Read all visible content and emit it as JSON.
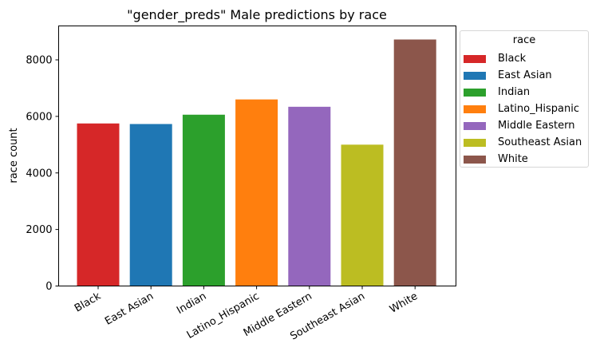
{
  "chart_data": {
    "type": "bar",
    "title": "\"gender_preds\" Male predictions by race",
    "xlabel": "",
    "ylabel": "race count",
    "ylim": [
      0,
      9200
    ],
    "yticks": [
      0,
      2000,
      4000,
      6000,
      8000
    ],
    "ytick_labels": [
      "0",
      "2000",
      "4000",
      "6000",
      "8000"
    ],
    "categories": [
      "Black",
      "East Asian",
      "Indian",
      "Latino_Hispanic",
      "Middle Eastern",
      "Southeast Asian",
      "White"
    ],
    "values": [
      5750,
      5730,
      6060,
      6600,
      6340,
      5000,
      8720
    ],
    "colors": [
      "#d62728",
      "#1f77b4",
      "#2ca02c",
      "#ff7f0e",
      "#9467bd",
      "#bcbd22",
      "#8c564b"
    ],
    "grid": false,
    "legend": {
      "title": "race",
      "placement": "outside-right-top",
      "entries": [
        "Black",
        "East Asian",
        "Indian",
        "Latino_Hispanic",
        "Middle Eastern",
        "Southeast Asian",
        "White"
      ]
    }
  }
}
